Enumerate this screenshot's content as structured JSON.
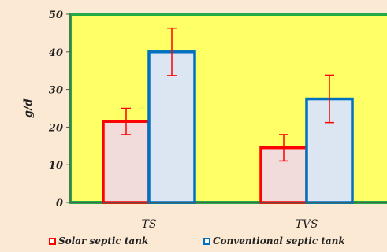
{
  "chart_data": {
    "type": "bar",
    "categories": [
      "TS",
      "TVS"
    ],
    "series": [
      {
        "name": "Solar septic tank",
        "values": [
          21.5,
          14.5
        ],
        "errors": [
          3.5,
          3.5
        ],
        "fill": "#f2dcdb",
        "stroke": "#ff0000"
      },
      {
        "name": "Conventional septic tank",
        "values": [
          40,
          27.5
        ],
        "errors": [
          6.3,
          6.3
        ],
        "fill": "#dce6f2",
        "stroke": "#0070c0"
      }
    ],
    "ylabel": "g/d",
    "ylim": [
      0,
      50
    ],
    "yticks": [
      0,
      10,
      20,
      30,
      40,
      50
    ],
    "plot_background": "#ffff66",
    "plot_border": "#22aa44",
    "error_bar_color": "#ff0000",
    "legend_position": "bottom"
  }
}
